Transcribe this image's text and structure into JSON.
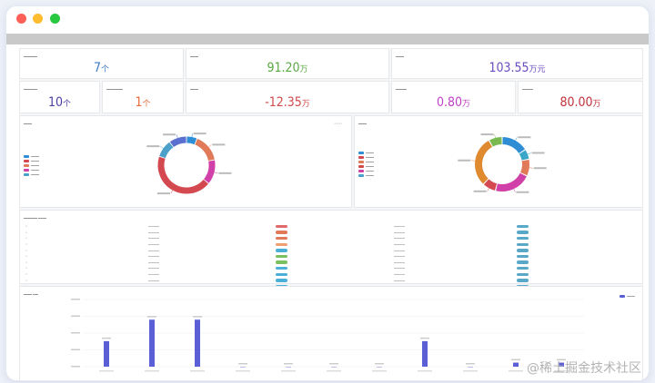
{
  "window": {
    "controls": [
      {
        "name": "close",
        "color": "#fe5f57"
      },
      {
        "name": "minimize",
        "color": "#febc2e"
      },
      {
        "name": "maximize",
        "color": "#28c840"
      }
    ]
  },
  "stats_row1": [
    {
      "value": "7",
      "unit": "个",
      "color": "#3d79c5"
    },
    {
      "value": "91.20",
      "unit": "万",
      "color": "#5aa844"
    },
    {
      "value": "103.55",
      "unit": "万元",
      "color": "#6a4cc0"
    }
  ],
  "stats_row2": [
    {
      "value": "10",
      "unit": "个",
      "color": "#4a3fa0"
    },
    {
      "value": "1",
      "unit": "个",
      "color": "#e86a3a"
    },
    {
      "value": "-12.35",
      "unit": "万",
      "color": "#d04a4a"
    },
    {
      "value": "0.80",
      "unit": "万",
      "color": "#c03ec8"
    },
    {
      "value": "80.00",
      "unit": "万",
      "color": "#c0303a"
    }
  ],
  "donut_left": {
    "legend_colors": [
      "#2f8dd6",
      "#d4484f",
      "#e07a58",
      "#d040a8",
      "#4aa0c8"
    ],
    "segments": [
      {
        "value": 6,
        "color": "#2f8dd6"
      },
      {
        "value": 16,
        "color": "#e07a58"
      },
      {
        "value": 14,
        "color": "#d040a8"
      },
      {
        "value": 44,
        "color": "#d4484f"
      },
      {
        "value": 10,
        "color": "#4aa0c8"
      },
      {
        "value": 10,
        "color": "#5b6fd0"
      }
    ]
  },
  "donut_right": {
    "legend_colors": [
      "#2f8dd6",
      "#d4484f",
      "#e07a58",
      "#d04a4a",
      "#d040a8",
      "#4aa0c8"
    ],
    "segments": [
      {
        "value": 16,
        "color": "#2f8dd6"
      },
      {
        "value": 6,
        "color": "#3aa6c8"
      },
      {
        "value": 10,
        "color": "#e07a58"
      },
      {
        "value": 22,
        "color": "#d040a8"
      },
      {
        "value": 8,
        "color": "#d4484f"
      },
      {
        "value": 30,
        "color": "#e08a30"
      },
      {
        "value": 8,
        "color": "#7ab850"
      }
    ]
  },
  "table": {
    "row_count": 11,
    "tag1_colors": [
      "#e06a6a",
      "#e07a58",
      "#e07a58",
      "#f0a070",
      "#4ab0d8",
      "#7ac060",
      "#7ac060",
      "#4ab0d8",
      "#4ab0d8",
      "#4ab0d8",
      "#4ab0d8"
    ],
    "tag2_color": "#5aa8c8"
  },
  "bar_chart": {
    "legend_color": "#5b5fd6",
    "values": [
      38,
      70,
      70,
      0,
      0,
      0,
      0,
      38,
      0,
      6,
      6
    ],
    "ylim": [
      0,
      100
    ]
  },
  "watermark": "@稀土掘金技术社区"
}
